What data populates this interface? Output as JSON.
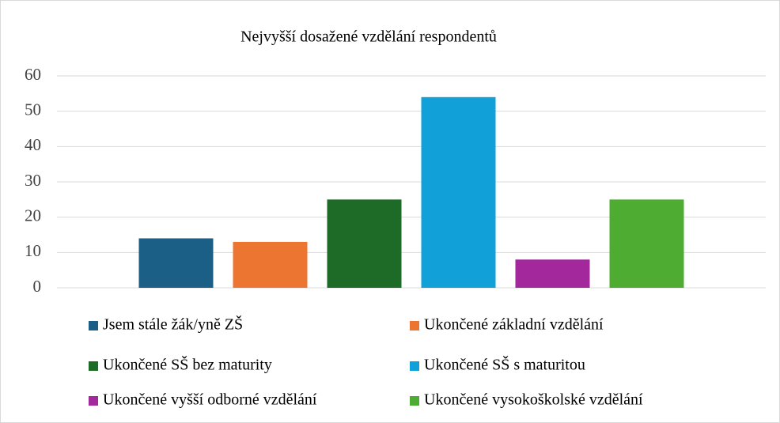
{
  "chart_data": {
    "type": "bar",
    "title": "Nejvyšší dosažené vzdělání respondentů",
    "categories": [
      null
    ],
    "series": [
      {
        "name": "Jsem stále žák/yně ZŠ",
        "color": "#1b5f86",
        "values": [
          14
        ]
      },
      {
        "name": "Ukončené základní vzdělání",
        "color": "#ed7532",
        "values": [
          13
        ]
      },
      {
        "name": "Ukončené SŠ bez maturity",
        "color": "#1e6b27",
        "values": [
          25
        ]
      },
      {
        "name": "Ukončené SŠ s maturitou",
        "color": "#12a0d8",
        "values": [
          54
        ]
      },
      {
        "name": "Ukončené vyšší odborné vzdělání",
        "color": "#a2289b",
        "values": [
          8
        ]
      },
      {
        "name": "Ukončené vysokoškolské vzdělání",
        "color": "#4fac33",
        "values": [
          25
        ]
      }
    ],
    "ylim": [
      0,
      60
    ],
    "yticks": [
      0,
      10,
      20,
      30,
      40,
      50,
      60
    ],
    "grid": true,
    "legend": "bottom"
  }
}
